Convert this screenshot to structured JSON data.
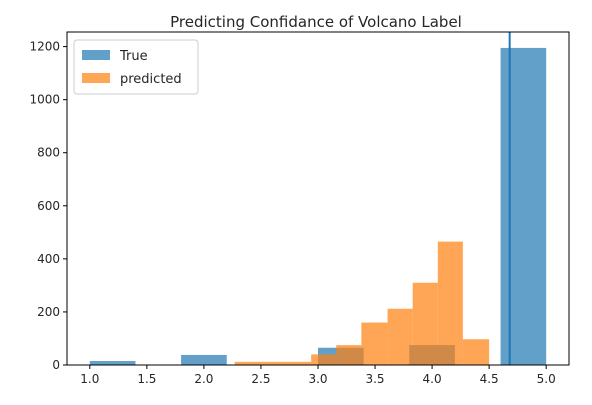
{
  "chart_data": {
    "type": "bar",
    "title": "Predicting Confidance of Volcano Label",
    "xlabel": "",
    "ylabel": "",
    "xlim": [
      0.8,
      5.2
    ],
    "ylim": [
      0,
      1255
    ],
    "xticks": [
      1.0,
      1.5,
      2.0,
      2.5,
      3.0,
      3.5,
      4.0,
      4.5,
      5.0
    ],
    "xtick_labels": [
      "1.0",
      "1.5",
      "2.0",
      "2.5",
      "3.0",
      "3.5",
      "4.0",
      "4.5",
      "5.0"
    ],
    "yticks": [
      0,
      200,
      400,
      600,
      800,
      1000,
      1200
    ],
    "ytick_labels": [
      "0",
      "200",
      "400",
      "600",
      "800",
      "1000",
      "1200"
    ],
    "legend_position": "upper-left",
    "series": [
      {
        "name": "True",
        "color": "#1f77b4",
        "alpha": 0.7,
        "bins": [
          {
            "x0": 1.0,
            "x1": 1.4,
            "value": 15
          },
          {
            "x0": 1.8,
            "x1": 2.2,
            "value": 38
          },
          {
            "x0": 3.0,
            "x1": 3.4,
            "value": 65
          },
          {
            "x0": 3.8,
            "x1": 4.2,
            "value": 75
          },
          {
            "x0": 4.6,
            "x1": 5.0,
            "value": 1195
          }
        ]
      },
      {
        "name": "predicted",
        "color": "#ff7f0e",
        "alpha": 0.7,
        "bins": [
          {
            "x0": 2.27,
            "x1": 2.5,
            "value": 12
          },
          {
            "x0": 2.5,
            "x1": 2.72,
            "value": 12
          },
          {
            "x0": 2.72,
            "x1": 2.94,
            "value": 12
          },
          {
            "x0": 2.94,
            "x1": 3.16,
            "value": 40
          },
          {
            "x0": 3.16,
            "x1": 3.38,
            "value": 75
          },
          {
            "x0": 3.38,
            "x1": 3.61,
            "value": 160
          },
          {
            "x0": 3.61,
            "x1": 3.83,
            "value": 212
          },
          {
            "x0": 3.83,
            "x1": 4.05,
            "value": 310
          },
          {
            "x0": 4.05,
            "x1": 4.27,
            "value": 465
          },
          {
            "x0": 4.27,
            "x1": 4.5,
            "value": 97
          }
        ]
      }
    ],
    "vline": {
      "x": 4.68,
      "color": "#1f77b4"
    }
  }
}
